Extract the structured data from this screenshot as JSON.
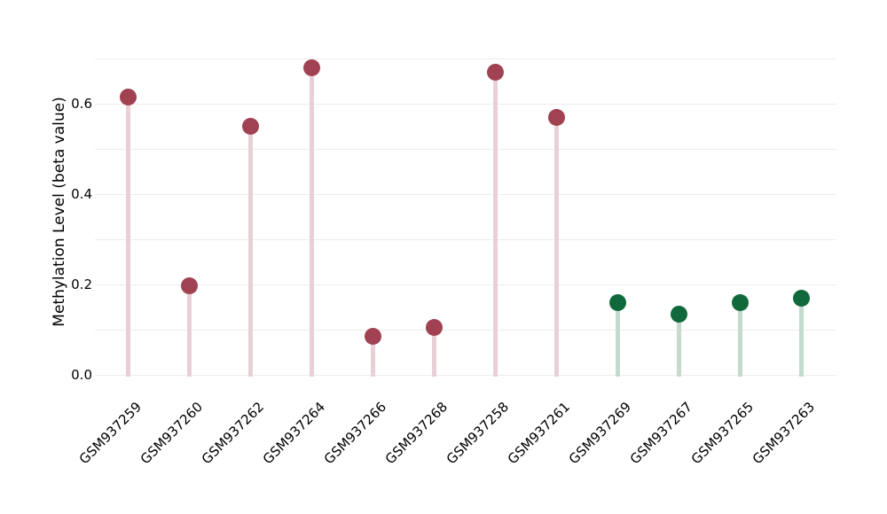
{
  "chart_data": {
    "type": "lollipop",
    "title": "",
    "xlabel": "",
    "ylabel": "Methylation Level (beta value)",
    "ylim": [
      0,
      0.72
    ],
    "grid": "on",
    "legend": "none",
    "gridlines": [
      0,
      0.1,
      0.2,
      0.3,
      0.4,
      0.5,
      0.6,
      0.7
    ],
    "yticks": [
      {
        "value": 0.0,
        "label": "0.0"
      },
      {
        "value": 0.2,
        "label": "0.2"
      },
      {
        "value": 0.4,
        "label": "0.4"
      },
      {
        "value": 0.6,
        "label": "0.6"
      }
    ],
    "categories": [
      "GSM937259",
      "GSM937260",
      "GSM937262",
      "GSM937264",
      "GSM937266",
      "GSM937268",
      "GSM937258",
      "GSM937261",
      "GSM937269",
      "GSM937267",
      "GSM937265",
      "GSM937263"
    ],
    "values": [
      0.615,
      0.197,
      0.55,
      0.68,
      0.085,
      0.105,
      0.67,
      0.57,
      0.16,
      0.135,
      0.16,
      0.17
    ],
    "groups": [
      "red",
      "red",
      "red",
      "red",
      "red",
      "red",
      "red",
      "red",
      "green",
      "green",
      "green",
      "green"
    ],
    "colors": {
      "red_point": "#a04251",
      "red_stem": "#e8d0d6",
      "green_point": "#10693b",
      "green_stem": "#c4dacd",
      "gridline": "#ececec",
      "text": "#000000"
    }
  }
}
